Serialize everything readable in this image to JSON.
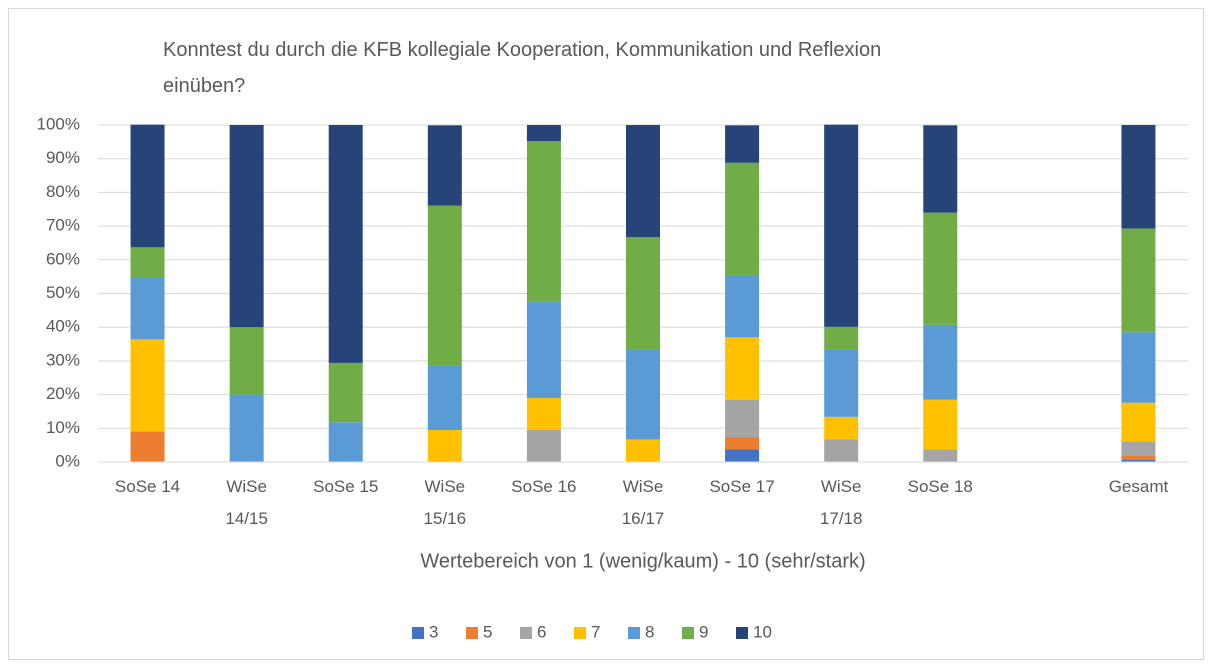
{
  "chart_data": {
    "type": "stacked_bar",
    "title": "Konntest du durch die KFB kollegiale Kooperation, Kommunikation und Reflexion einüben?",
    "x_label": "Wertebereich von 1 (wenig/kaum) - 10 (sehr/stark)",
    "categories": [
      "SoSe 14",
      "WiSe 14/15",
      "SoSe 15",
      "WiSe 15/16",
      "SoSe 16",
      "WiSe 16/17",
      "SoSe 17",
      "WiSe 17/18",
      "SoSe 18",
      null,
      "Gesamt"
    ],
    "series": [
      {
        "name": "3",
        "color": "#4472c4",
        "values": [
          0,
          0,
          0,
          0,
          0,
          0,
          3.7,
          0,
          0,
          null,
          0.6
        ]
      },
      {
        "name": "5",
        "color": "#ed7d31",
        "values": [
          9.1,
          0,
          0,
          0,
          0,
          0,
          3.7,
          0,
          0,
          null,
          1.2
        ]
      },
      {
        "name": "6",
        "color": "#a5a5a5",
        "values": [
          0,
          0,
          0,
          0,
          9.5,
          0,
          11.1,
          6.7,
          3.7,
          null,
          4.3
        ]
      },
      {
        "name": "7",
        "color": "#ffc000",
        "values": [
          27.3,
          0,
          0,
          9.5,
          9.5,
          6.7,
          18.5,
          6.7,
          14.8,
          null,
          11.5
        ]
      },
      {
        "name": "8",
        "color": "#5b9bd5",
        "values": [
          18.2,
          20,
          11.8,
          19.0,
          28.6,
          26.7,
          18.5,
          20,
          22.2,
          null,
          20.9
        ]
      },
      {
        "name": "9",
        "color": "#70ad47",
        "values": [
          9.1,
          20,
          17.6,
          47.6,
          47.6,
          33.3,
          33.3,
          6.7,
          33.3,
          null,
          30.8
        ]
      },
      {
        "name": "10",
        "color": "#264478",
        "values": [
          36.4,
          60,
          70.6,
          23.8,
          4.8,
          33.3,
          11.1,
          60,
          25.9,
          null,
          30.7
        ]
      }
    ],
    "ylim": [
      0,
      100
    ],
    "yticks": [
      {
        "value": 0,
        "label": "0%"
      },
      {
        "value": 10,
        "label": "10%"
      },
      {
        "value": 20,
        "label": "20%"
      },
      {
        "value": 30,
        "label": "30%"
      },
      {
        "value": 40,
        "label": "40%"
      },
      {
        "value": 50,
        "label": "50%"
      },
      {
        "value": 60,
        "label": "60%"
      },
      {
        "value": 70,
        "label": "70%"
      },
      {
        "value": 80,
        "label": "80%"
      },
      {
        "value": 90,
        "label": "90%"
      },
      {
        "value": 100,
        "label": "100%"
      }
    ],
    "grid": true,
    "legend": "bottom"
  }
}
